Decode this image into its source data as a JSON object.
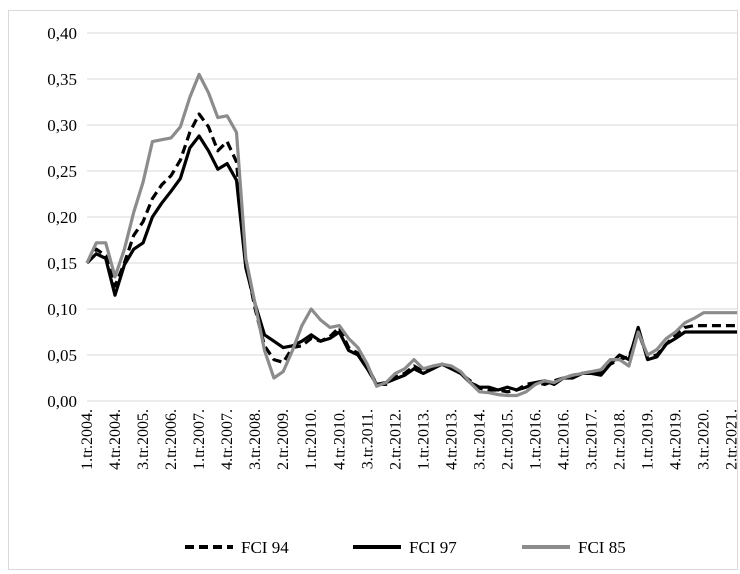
{
  "chart_data": {
    "type": "line",
    "title": "",
    "xlabel": "",
    "ylabel": "",
    "ylim": [
      0,
      0.4
    ],
    "yticks": [
      "0,00",
      "0,05",
      "0,10",
      "0,15",
      "0,20",
      "0,25",
      "0,30",
      "0,35",
      "0,40"
    ],
    "grid": "horizontal",
    "legend_position": "bottom",
    "x": [
      "1.tr.2004.",
      "2.tr.2004.",
      "3.tr.2004.",
      "4.tr.2004.",
      "1.tr.2005.",
      "2.tr.2005.",
      "3.tr.2005.",
      "4.tr.2005.",
      "1.tr.2006.",
      "2.tr.2006.",
      "3.tr.2006.",
      "4.tr.2006.",
      "1.tr.2007.",
      "2.tr.2007.",
      "3.tr.2007.",
      "4.tr.2007.",
      "1.tr.2008.",
      "2.tr.2008.",
      "3.tr.2008.",
      "4.tr.2008.",
      "1.tr.2009.",
      "2.tr.2009.",
      "3.tr.2009.",
      "4.tr.2009.",
      "1.tr.2010.",
      "2.tr.2010.",
      "3.tr.2010.",
      "4.tr.2010.",
      "1.tr.2011.",
      "2.tr.2011.",
      "3.tr.2011.",
      "4.tr.2011.",
      "1.tr.2012.",
      "2.tr.2012.",
      "3.tr.2012.",
      "4.tr.2012.",
      "1.tr.2013.",
      "2.tr.2013.",
      "3.tr.2013.",
      "4.tr.2013.",
      "1.tr.2014.",
      "2.tr.2014.",
      "3.tr.2014.",
      "4.tr.2014.",
      "1.tr.2015.",
      "2.tr.2015.",
      "3.tr.2015.",
      "4.tr.2015.",
      "1.tr.2016.",
      "2.tr.2016.",
      "3.tr.2016.",
      "4.tr.2016.",
      "1.tr.2017.",
      "2.tr.2017.",
      "3.tr.2017.",
      "4.tr.2017.",
      "1.tr.2018.",
      "2.tr.2018.",
      "3.tr.2018.",
      "4.tr.2018.",
      "1.tr.2019.",
      "2.tr.2019.",
      "3.tr.2019.",
      "4.tr.2019.",
      "1.tr.2020.",
      "2.tr.2020.",
      "3.tr.2020.",
      "4.tr.2020.",
      "1.tr.2021.",
      "2.tr.2021.",
      "3.tr.2021."
    ],
    "x_tick_labels": [
      "1.tr.2004.",
      "4.tr.2004.",
      "3.tr.2005.",
      "2.tr.2006.",
      "1.tr.2007.",
      "4.tr.2007.",
      "3.tr.2008.",
      "2.tr.2009.",
      "1.tr.2010.",
      "4.tr.2010.",
      "3.tr.2011.",
      "2.tr.2012.",
      "1.tr.2013.",
      "4.tr.2013.",
      "3.tr.2014.",
      "2.tr.2015.",
      "1.tr.2016.",
      "4.tr.2016.",
      "3.tr.2017.",
      "2.tr.2018.",
      "1.tr.2019.",
      "4.tr.2019.",
      "3.tr.2020.",
      "2.tr.2021."
    ],
    "series": [
      {
        "name": "FCI 94",
        "style": "dashed",
        "color": "#000000",
        "values": [
          0.15,
          0.165,
          0.158,
          0.125,
          0.15,
          0.18,
          0.195,
          0.22,
          0.235,
          0.245,
          0.262,
          0.292,
          0.312,
          0.298,
          0.272,
          0.282,
          0.26,
          0.15,
          0.1,
          0.06,
          0.045,
          0.042,
          0.058,
          0.06,
          0.068,
          0.065,
          0.07,
          0.08,
          0.058,
          0.052,
          0.038,
          0.018,
          0.018,
          0.026,
          0.03,
          0.038,
          0.032,
          0.036,
          0.04,
          0.036,
          0.03,
          0.022,
          0.014,
          0.012,
          0.012,
          0.01,
          0.012,
          0.018,
          0.02,
          0.018,
          0.022,
          0.025,
          0.028,
          0.03,
          0.032,
          0.03,
          0.04,
          0.045,
          0.048,
          0.075,
          0.048,
          0.05,
          0.062,
          0.072,
          0.08,
          0.082,
          0.082,
          0.082,
          0.082,
          0.082,
          0.082
        ]
      },
      {
        "name": "FCI 97",
        "style": "solid",
        "color": "#000000",
        "values": [
          0.15,
          0.16,
          0.155,
          0.115,
          0.148,
          0.165,
          0.172,
          0.2,
          0.215,
          0.228,
          0.242,
          0.275,
          0.288,
          0.272,
          0.252,
          0.258,
          0.24,
          0.145,
          0.105,
          0.072,
          0.065,
          0.058,
          0.06,
          0.065,
          0.072,
          0.065,
          0.068,
          0.075,
          0.055,
          0.05,
          0.035,
          0.018,
          0.02,
          0.024,
          0.028,
          0.035,
          0.03,
          0.035,
          0.04,
          0.035,
          0.03,
          0.02,
          0.015,
          0.015,
          0.012,
          0.015,
          0.012,
          0.015,
          0.02,
          0.022,
          0.018,
          0.025,
          0.025,
          0.03,
          0.03,
          0.028,
          0.04,
          0.05,
          0.045,
          0.08,
          0.045,
          0.048,
          0.062,
          0.068,
          0.075,
          0.075,
          0.075,
          0.075,
          0.075,
          0.075,
          0.075
        ]
      },
      {
        "name": "FCI 85",
        "style": "solid",
        "color": "#8c8c8c",
        "values": [
          0.15,
          0.172,
          0.172,
          0.135,
          0.165,
          0.205,
          0.238,
          0.282,
          0.284,
          0.286,
          0.298,
          0.33,
          0.355,
          0.335,
          0.308,
          0.31,
          0.292,
          0.155,
          0.105,
          0.055,
          0.025,
          0.032,
          0.055,
          0.082,
          0.1,
          0.088,
          0.08,
          0.082,
          0.068,
          0.058,
          0.04,
          0.016,
          0.02,
          0.03,
          0.035,
          0.045,
          0.035,
          0.038,
          0.04,
          0.038,
          0.032,
          0.02,
          0.01,
          0.009,
          0.007,
          0.006,
          0.006,
          0.01,
          0.018,
          0.022,
          0.02,
          0.025,
          0.028,
          0.03,
          0.032,
          0.034,
          0.045,
          0.045,
          0.038,
          0.075,
          0.05,
          0.056,
          0.068,
          0.075,
          0.085,
          0.09,
          0.096,
          0.096,
          0.096,
          0.096,
          0.096
        ]
      }
    ]
  }
}
